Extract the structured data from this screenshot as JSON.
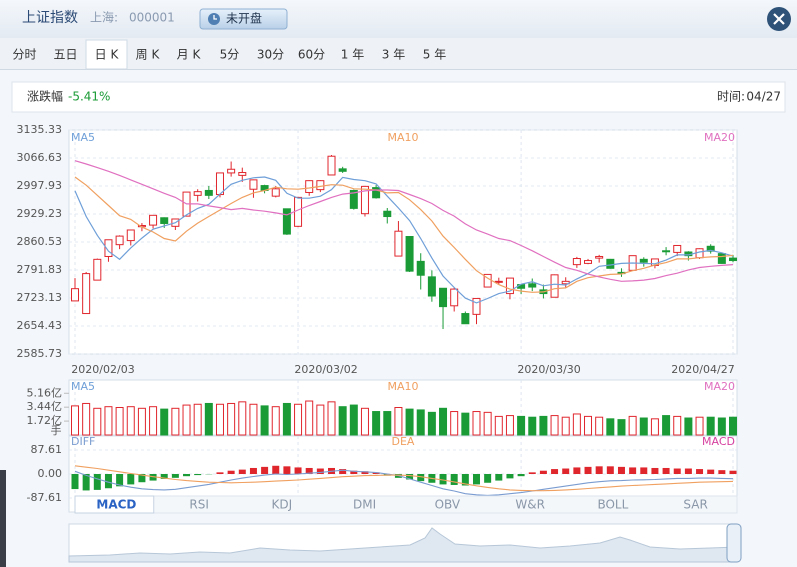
{
  "header": {
    "title": "上证指数",
    "market": "上海:",
    "code": "000001",
    "status": "未开盘"
  },
  "tabs": [
    "分时",
    "五日",
    "日 K",
    "周 K",
    "月 K",
    "5分",
    "30分",
    "60分",
    "1 年",
    "3 年",
    "5 年"
  ],
  "active_tab": 2,
  "info": {
    "change_label": "涨跌幅",
    "change_value": "-5.41%",
    "time_label": "时间:",
    "time_value": "04/27"
  },
  "indicator_tabs": [
    "MACD",
    "RSI",
    "KDJ",
    "DMI",
    "OBV",
    "W&R",
    "BOLL",
    "SAR"
  ],
  "active_indicator": 0,
  "chart_data": [
    {
      "type": "candlestick",
      "categories": [
        "2020/02/03",
        null,
        null,
        null,
        null,
        null,
        null,
        null,
        null,
        null,
        null,
        null,
        null,
        null,
        null,
        null,
        null,
        null,
        null,
        null,
        "2020/03/02",
        null,
        null,
        null,
        null,
        null,
        null,
        null,
        null,
        null,
        null,
        null,
        null,
        null,
        null,
        null,
        null,
        null,
        null,
        null,
        "2020/03/30",
        null,
        null,
        null,
        null,
        null,
        null,
        null,
        null,
        null,
        null,
        null,
        null,
        null,
        null,
        null,
        null,
        null,
        null,
        "2020/04/27"
      ],
      "open": [
        2716,
        2685,
        2767,
        2825,
        2854,
        2864,
        2898,
        2902,
        2920,
        2899,
        2924,
        2975,
        2987,
        2977,
        3030,
        3024,
        2990,
        2999,
        2973,
        2942,
        2899,
        2982,
        2989,
        3025,
        3040,
        2987,
        2930,
        2994,
        2936,
        2826,
        2874,
        2813,
        2775,
        2747,
        2704,
        2685,
        2683,
        2750,
        2764,
        2734,
        2756,
        2758,
        2743,
        2725,
        2758,
        2805,
        2808,
        2821,
        2818,
        2786,
        2791,
        2818,
        2803,
        2839,
        2835,
        2836,
        2822,
        2850,
        2832,
        2821
      ],
      "high": [
        2772,
        2787,
        2820,
        2866,
        2877,
        2891,
        2907,
        2926,
        2921,
        2918,
        2983,
        2990,
        2998,
        3030,
        3058,
        3043,
        3014,
        3001,
        2998,
        2942,
        2971,
        3012,
        3012,
        3074,
        3045,
        2989,
        2998,
        3000,
        2944,
        2912,
        2875,
        2833,
        2791,
        2747,
        2748,
        2690,
        2722,
        2781,
        2773,
        2772,
        2757,
        2771,
        2756,
        2781,
        2774,
        2824,
        2819,
        2829,
        2819,
        2796,
        2827,
        2823,
        2820,
        2848,
        2852,
        2838,
        2845,
        2855,
        2834,
        2829
      ],
      "low": [
        2716,
        2685,
        2767,
        2812,
        2843,
        2852,
        2887,
        2894,
        2895,
        2890,
        2924,
        2960,
        2966,
        2970,
        3021,
        3008,
        2969,
        2980,
        2970,
        2878,
        2897,
        2974,
        2983,
        3025,
        3030,
        2940,
        2923,
        2967,
        2906,
        2826,
        2787,
        2744,
        2714,
        2647,
        2690,
        2660,
        2659,
        2750,
        2755,
        2720,
        2733,
        2740,
        2722,
        2725,
        2749,
        2797,
        2806,
        2810,
        2795,
        2775,
        2790,
        2800,
        2796,
        2828,
        2826,
        2815,
        2819,
        2832,
        2807,
        2811
      ],
      "close": [
        2746,
        2783,
        2818,
        2866,
        2875,
        2890,
        2901,
        2926,
        2906,
        2917,
        2983,
        2984,
        2975,
        3030,
        3039,
        3031,
        3013,
        2987,
        2991,
        2880,
        2970,
        3011,
        3011,
        3071,
        3034,
        2943,
        2997,
        2969,
        2923,
        2887,
        2789,
        2779,
        2728,
        2702,
        2745,
        2660,
        2722,
        2781,
        2764,
        2772,
        2747,
        2750,
        2734,
        2780,
        2764,
        2820,
        2815,
        2825,
        2796,
        2783,
        2827,
        2811,
        2819,
        2838,
        2852,
        2827,
        2844,
        2838,
        2808,
        2815
      ],
      "up_color": "#e0262d",
      "down_color": "#1a9b36",
      "series": [
        {
          "name": "MA5",
          "color": "#6f9fd8",
          "values": [
            2986,
            2923,
            2877,
            2838,
            2818,
            2846,
            2870,
            2892,
            2900,
            2908,
            2927,
            2943,
            2953,
            2978,
            3002,
            3012,
            3018,
            3020,
            3012,
            2980,
            2968,
            2968,
            2973,
            2989,
            3019,
            3014,
            3011,
            3003,
            2973,
            2944,
            2913,
            2869,
            2821,
            2777,
            2749,
            2723,
            2711,
            2722,
            2734,
            2740,
            2757,
            2763,
            2753,
            2757,
            2755,
            2770,
            2783,
            2801,
            2804,
            2808,
            2809,
            2808,
            2807,
            2816,
            2829,
            2829,
            2836,
            2840,
            2834,
            2826
          ]
        },
        {
          "name": "MA10",
          "color": "#f0a060",
          "values": [
            3020,
            3000,
            2975,
            2950,
            2925,
            2916,
            2897,
            2885,
            2869,
            2863,
            2887,
            2907,
            2923,
            2939,
            2955,
            2970,
            2981,
            2987,
            2995,
            2991,
            2990,
            2993,
            2997,
            3001,
            3000,
            2991,
            2990,
            2988,
            2981,
            2982,
            2964,
            2940,
            2912,
            2875,
            2847,
            2818,
            2790,
            2772,
            2756,
            2745,
            2740,
            2737,
            2738,
            2746,
            2748,
            2764,
            2773,
            2777,
            2781,
            2782,
            2790,
            2796,
            2804,
            2810,
            2819,
            2819,
            2822,
            2824,
            2825,
            2828
          ]
        },
        {
          "name": "MA20",
          "color": "#e070c0",
          "values": [
            3060,
            3052,
            3043,
            3034,
            3024,
            3013,
            3002,
            2991,
            2980,
            2970,
            2954,
            2954,
            2949,
            2945,
            2940,
            2943,
            2939,
            2936,
            2932,
            2927,
            2939,
            2950,
            2960,
            2970,
            2978,
            2981,
            2986,
            2988,
            2988,
            2987,
            2977,
            2967,
            2955,
            2938,
            2924,
            2905,
            2890,
            2880,
            2869,
            2864,
            2852,
            2839,
            2825,
            2811,
            2798,
            2791,
            2782,
            2775,
            2769,
            2764,
            2765,
            2767,
            2771,
            2778,
            2784,
            2792,
            2798,
            2801,
            2803,
            2805
          ]
        }
      ],
      "ylim": [
        2585.73,
        3135.33
      ],
      "yticks": [
        3135.33,
        3066.63,
        2997.93,
        2929.23,
        2860.53,
        2791.83,
        2723.13,
        2654.43,
        2585.73
      ],
      "grid": true
    },
    {
      "type": "bar",
      "values": [
        3.6,
        3.9,
        3.3,
        3.5,
        3.4,
        3.5,
        3.3,
        3.5,
        3.2,
        3.3,
        3.7,
        3.8,
        3.9,
        3.8,
        3.9,
        4.1,
        3.8,
        3.6,
        3.5,
        3.9,
        3.8,
        4.2,
        3.7,
        4.1,
        3.5,
        3.7,
        3.3,
        2.9,
        2.9,
        3.4,
        3.2,
        3.1,
        2.8,
        3.3,
        2.9,
        2.7,
        2.9,
        2.8,
        2.3,
        2.4,
        2.3,
        2.2,
        2.3,
        2.4,
        2.2,
        2.6,
        2.3,
        2.2,
        2.0,
        1.9,
        2.3,
        2.1,
        2.0,
        2.4,
        2.3,
        2.1,
        2.2,
        2.2,
        2.1,
        2.2
      ],
      "indicator_labels": [
        "MA5",
        "MA10",
        "MA20"
      ],
      "y_unit": "手",
      "ylim": [
        0,
        6.8
      ],
      "yticks": [
        {
          "value": 5.16,
          "label": "5.16亿"
        },
        {
          "value": 3.44,
          "label": "3.44亿"
        },
        {
          "value": 1.72,
          "label": "1.72亿"
        }
      ]
    },
    {
      "type": "macd",
      "series": [
        {
          "name": "DIFF",
          "color": "#7a9cd0",
          "values": [
            10,
            -5,
            -18,
            -30,
            -40,
            -48,
            -54,
            -57,
            -58,
            -56,
            -50,
            -44,
            -38,
            -30,
            -22,
            -15,
            -9,
            -4,
            0,
            -2,
            0,
            3,
            6,
            10,
            14,
            10,
            8,
            5,
            0,
            -6,
            -18,
            -30,
            -42,
            -54,
            -62,
            -72,
            -76,
            -78,
            -76,
            -72,
            -68,
            -62,
            -56,
            -50,
            -44,
            -38,
            -32,
            -28,
            -25,
            -24,
            -22,
            -21,
            -20,
            -18,
            -16,
            -16,
            -15,
            -15,
            -16,
            -17
          ]
        },
        {
          "name": "DEA",
          "color": "#f0a060",
          "values": [
            30,
            25,
            20,
            14,
            8,
            2,
            -4,
            -10,
            -15,
            -20,
            -24,
            -27,
            -30,
            -31,
            -32,
            -31,
            -30,
            -28,
            -26,
            -24,
            -22,
            -19,
            -16,
            -13,
            -10,
            -8,
            -6,
            -5,
            -4,
            -4,
            -6,
            -10,
            -16,
            -22,
            -29,
            -36,
            -43,
            -49,
            -54,
            -58,
            -60,
            -61,
            -61,
            -60,
            -58,
            -56,
            -53,
            -50,
            -47,
            -44,
            -42,
            -40,
            -38,
            -36,
            -34,
            -32,
            -30,
            -29,
            -28,
            -27
          ]
        }
      ],
      "histogram": {
        "name": "MACD",
        "color": "#d6409f",
        "values": [
          -55,
          -60,
          -58,
          -52,
          -45,
          -38,
          -30,
          -24,
          -18,
          -14,
          -8,
          -4,
          -1,
          6,
          12,
          16,
          22,
          26,
          30,
          28,
          24,
          22,
          20,
          22,
          18,
          12,
          10,
          6,
          -6,
          -14,
          -20,
          -26,
          -32,
          -38,
          -40,
          -42,
          -38,
          -32,
          -24,
          -16,
          -8,
          6,
          12,
          18,
          20,
          24,
          26,
          28,
          28,
          26,
          24,
          24,
          22,
          22,
          20,
          20,
          18,
          16,
          14,
          12
        ]
      },
      "ylim": [
        -138.7,
        138.7
      ],
      "yticks": [
        87.61,
        {
          "value": 0,
          "label": "0.00"
        },
        -87.61
      ]
    }
  ]
}
